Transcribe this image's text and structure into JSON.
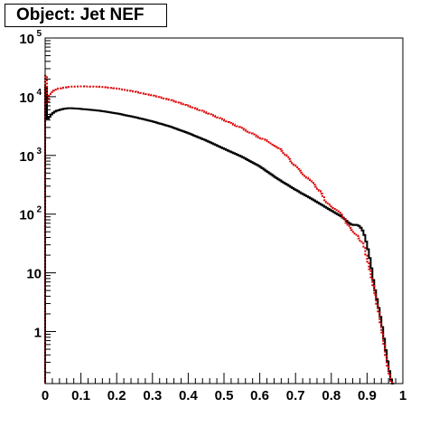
{
  "title": "Object: Jet NEF",
  "colors": {
    "black_series": "#000000",
    "red_series": "#dd0000",
    "frame": "#000000"
  },
  "chart_data": {
    "type": "histogram",
    "title": "Object: Jet NEF",
    "xlabel": "",
    "ylabel": "",
    "xlim": [
      0,
      1
    ],
    "ylim": [
      0.13,
      100000
    ],
    "yscale": "log",
    "grid": false,
    "legend": "none",
    "x_ticks": [
      "0",
      "0.1",
      "0.2",
      "0.3",
      "0.4",
      "0.5",
      "0.6",
      "0.7",
      "0.8",
      "0.9",
      "1"
    ],
    "y_ticks": [
      {
        "value": 1,
        "base": "1",
        "exp": ""
      },
      {
        "value": 10,
        "base": "10",
        "exp": ""
      },
      {
        "value": 100,
        "base": "10",
        "exp": "2"
      },
      {
        "value": 1000,
        "base": "10",
        "exp": "3"
      },
      {
        "value": 10000,
        "base": "10",
        "exp": "4"
      },
      {
        "value": 100000,
        "base": "10",
        "exp": "5"
      }
    ],
    "bin_width": 0.005,
    "series": [
      {
        "color": "#000000",
        "style": "solid",
        "points": [
          [
            0.0,
            50000
          ],
          [
            0.005,
            4200
          ],
          [
            0.01,
            4300
          ],
          [
            0.015,
            4800
          ],
          [
            0.02,
            5200
          ],
          [
            0.03,
            5700
          ],
          [
            0.05,
            6200
          ],
          [
            0.07,
            6400
          ],
          [
            0.1,
            6200
          ],
          [
            0.15,
            5800
          ],
          [
            0.2,
            5200
          ],
          [
            0.25,
            4500
          ],
          [
            0.3,
            3800
          ],
          [
            0.35,
            3100
          ],
          [
            0.4,
            2400
          ],
          [
            0.45,
            1800
          ],
          [
            0.5,
            1300
          ],
          [
            0.55,
            950
          ],
          [
            0.6,
            650
          ],
          [
            0.65,
            400
          ],
          [
            0.7,
            260
          ],
          [
            0.75,
            175
          ],
          [
            0.8,
            115
          ],
          [
            0.83,
            90
          ],
          [
            0.85,
            70
          ],
          [
            0.86,
            65
          ],
          [
            0.87,
            66
          ],
          [
            0.88,
            62
          ],
          [
            0.89,
            50
          ],
          [
            0.9,
            30
          ],
          [
            0.91,
            15
          ],
          [
            0.92,
            6
          ],
          [
            0.93,
            3
          ],
          [
            0.94,
            1.5
          ],
          [
            0.95,
            0.6
          ],
          [
            0.96,
            0.25
          ],
          [
            0.97,
            0.13
          ]
        ]
      },
      {
        "color": "#dd0000",
        "style": "dotted",
        "points": [
          [
            0.0,
            80000
          ],
          [
            0.005,
            6500
          ],
          [
            0.01,
            9500
          ],
          [
            0.015,
            11500
          ],
          [
            0.02,
            12500
          ],
          [
            0.03,
            13500
          ],
          [
            0.05,
            14200
          ],
          [
            0.07,
            14800
          ],
          [
            0.1,
            15000
          ],
          [
            0.15,
            14800
          ],
          [
            0.2,
            13800
          ],
          [
            0.25,
            12200
          ],
          [
            0.3,
            10500
          ],
          [
            0.35,
            8800
          ],
          [
            0.4,
            7000
          ],
          [
            0.45,
            5400
          ],
          [
            0.5,
            4000
          ],
          [
            0.55,
            2900
          ],
          [
            0.6,
            2000
          ],
          [
            0.62,
            1800
          ],
          [
            0.64,
            1500
          ],
          [
            0.66,
            1250
          ],
          [
            0.68,
            900
          ],
          [
            0.7,
            650
          ],
          [
            0.73,
            430
          ],
          [
            0.75,
            330
          ],
          [
            0.77,
            240
          ],
          [
            0.78,
            180
          ],
          [
            0.8,
            130
          ],
          [
            0.81,
            120
          ],
          [
            0.82,
            110
          ],
          [
            0.83,
            95
          ],
          [
            0.85,
            60
          ],
          [
            0.87,
            45
          ],
          [
            0.89,
            30
          ],
          [
            0.9,
            18
          ],
          [
            0.91,
            10
          ],
          [
            0.92,
            5
          ],
          [
            0.93,
            2.5
          ],
          [
            0.94,
            1.2
          ],
          [
            0.95,
            0.5
          ],
          [
            0.96,
            0.2
          ],
          [
            0.97,
            0.13
          ]
        ]
      }
    ]
  }
}
